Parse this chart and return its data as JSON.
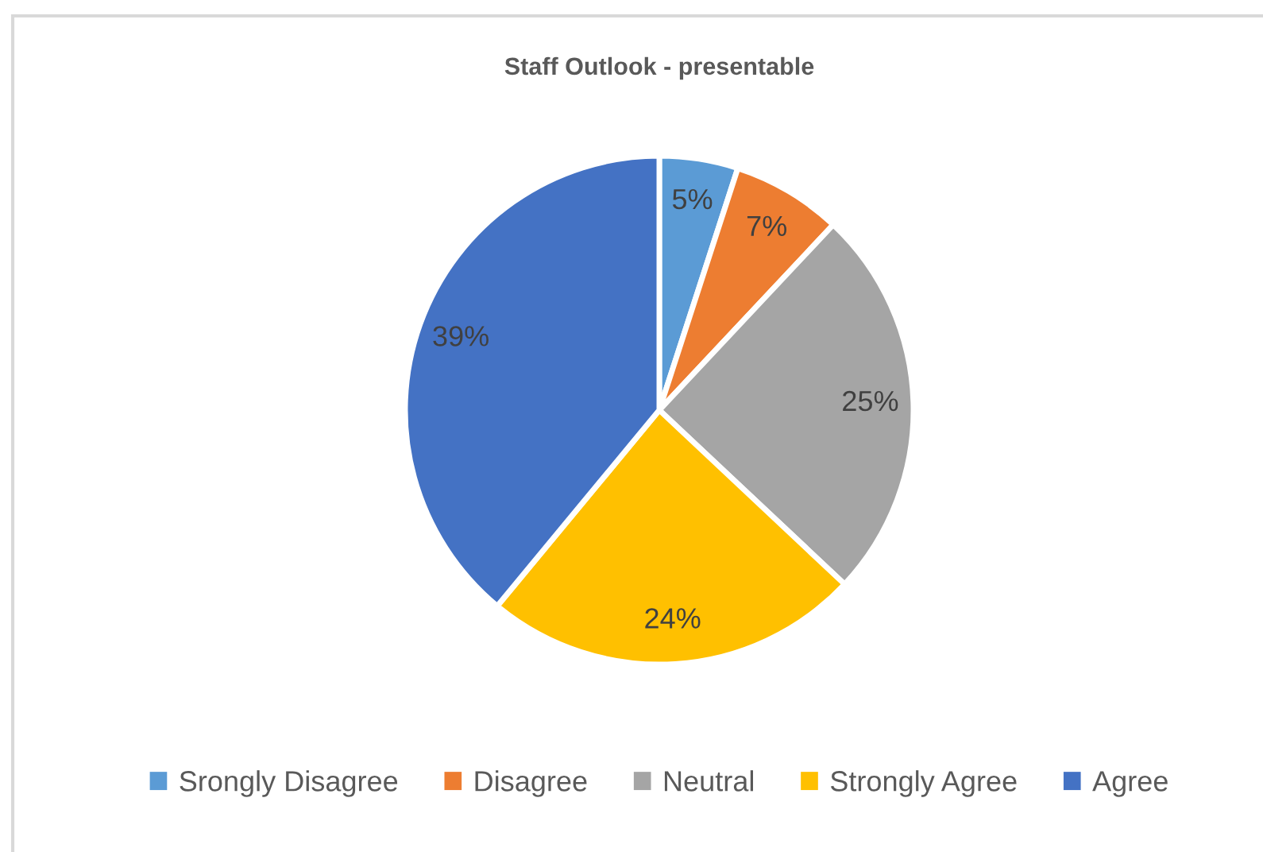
{
  "chart_data": {
    "type": "pie",
    "title": "Staff Outlook - presentable",
    "categories": [
      "Srongly Disagree",
      "Disagree",
      "Neutral",
      "Strongly Agree",
      "Agree"
    ],
    "values": [
      5,
      7,
      25,
      24,
      39
    ],
    "colors": [
      "#5b9bd5",
      "#ed7d31",
      "#a5a5a5",
      "#ffc000",
      "#4472c4"
    ],
    "value_labels": [
      "5%",
      "7%",
      "25%",
      "24%",
      "39%"
    ],
    "legend": "bottom"
  }
}
